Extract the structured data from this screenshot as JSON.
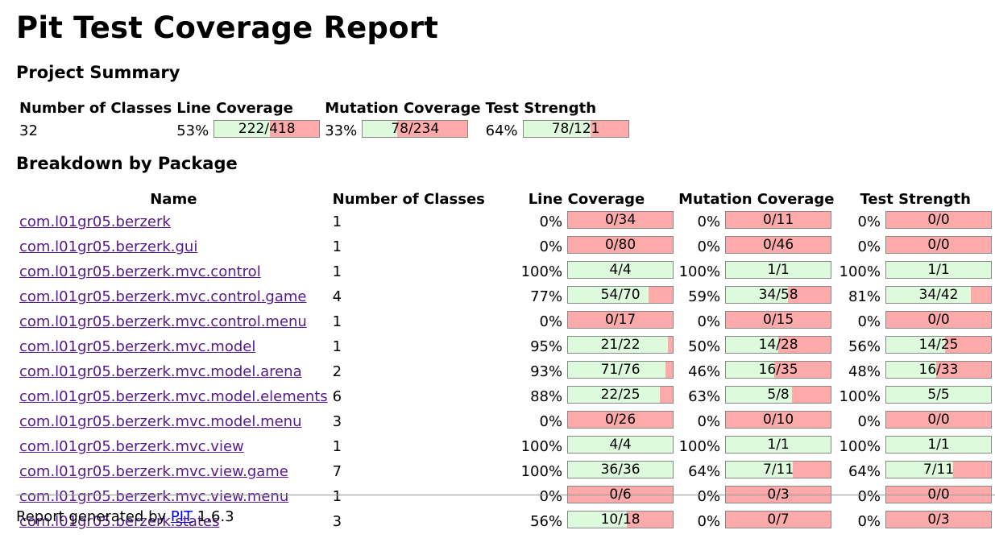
{
  "title": "Pit Test Coverage Report",
  "summary": {
    "heading": "Project Summary",
    "headers": [
      "Number of Classes",
      "Line Coverage",
      "Mutation Coverage",
      "Test Strength"
    ],
    "classes": "32",
    "line": {
      "pct": "53%",
      "text": "222/418",
      "ratio": 0.53
    },
    "mutation": {
      "pct": "33%",
      "text": "78/234",
      "ratio": 0.33
    },
    "strength": {
      "pct": "64%",
      "text": "78/121",
      "ratio": 0.64
    }
  },
  "breakdown": {
    "heading": "Breakdown by Package",
    "headers": [
      "Name",
      "Number of Classes",
      "Line Coverage",
      "Mutation Coverage",
      "Test Strength"
    ],
    "rows": [
      {
        "name": "com.l01gr05.berzerk",
        "classes": "1",
        "line": {
          "pct": "0%",
          "text": "0/34",
          "ratio": 0
        },
        "mutation": {
          "pct": "0%",
          "text": "0/11",
          "ratio": 0
        },
        "strength": {
          "pct": "0%",
          "text": "0/0",
          "ratio": 0
        }
      },
      {
        "name": "com.l01gr05.berzerk.gui",
        "classes": "1",
        "line": {
          "pct": "0%",
          "text": "0/80",
          "ratio": 0
        },
        "mutation": {
          "pct": "0%",
          "text": "0/46",
          "ratio": 0
        },
        "strength": {
          "pct": "0%",
          "text": "0/0",
          "ratio": 0
        }
      },
      {
        "name": "com.l01gr05.berzerk.mvc.control",
        "classes": "1",
        "line": {
          "pct": "100%",
          "text": "4/4",
          "ratio": 1
        },
        "mutation": {
          "pct": "100%",
          "text": "1/1",
          "ratio": 1
        },
        "strength": {
          "pct": "100%",
          "text": "1/1",
          "ratio": 1
        }
      },
      {
        "name": "com.l01gr05.berzerk.mvc.control.game",
        "classes": "4",
        "line": {
          "pct": "77%",
          "text": "54/70",
          "ratio": 0.77
        },
        "mutation": {
          "pct": "59%",
          "text": "34/58",
          "ratio": 0.59
        },
        "strength": {
          "pct": "81%",
          "text": "34/42",
          "ratio": 0.81
        }
      },
      {
        "name": "com.l01gr05.berzerk.mvc.control.menu",
        "classes": "1",
        "line": {
          "pct": "0%",
          "text": "0/17",
          "ratio": 0
        },
        "mutation": {
          "pct": "0%",
          "text": "0/15",
          "ratio": 0
        },
        "strength": {
          "pct": "0%",
          "text": "0/0",
          "ratio": 0
        }
      },
      {
        "name": "com.l01gr05.berzerk.mvc.model",
        "classes": "1",
        "line": {
          "pct": "95%",
          "text": "21/22",
          "ratio": 0.95
        },
        "mutation": {
          "pct": "50%",
          "text": "14/28",
          "ratio": 0.5
        },
        "strength": {
          "pct": "56%",
          "text": "14/25",
          "ratio": 0.56
        }
      },
      {
        "name": "com.l01gr05.berzerk.mvc.model.arena",
        "classes": "2",
        "line": {
          "pct": "93%",
          "text": "71/76",
          "ratio": 0.93
        },
        "mutation": {
          "pct": "46%",
          "text": "16/35",
          "ratio": 0.46
        },
        "strength": {
          "pct": "48%",
          "text": "16/33",
          "ratio": 0.48
        }
      },
      {
        "name": "com.l01gr05.berzerk.mvc.model.elements",
        "classes": "6",
        "line": {
          "pct": "88%",
          "text": "22/25",
          "ratio": 0.88
        },
        "mutation": {
          "pct": "63%",
          "text": "5/8",
          "ratio": 0.63
        },
        "strength": {
          "pct": "100%",
          "text": "5/5",
          "ratio": 1
        }
      },
      {
        "name": "com.l01gr05.berzerk.mvc.model.menu",
        "classes": "3",
        "line": {
          "pct": "0%",
          "text": "0/26",
          "ratio": 0
        },
        "mutation": {
          "pct": "0%",
          "text": "0/10",
          "ratio": 0
        },
        "strength": {
          "pct": "0%",
          "text": "0/0",
          "ratio": 0
        }
      },
      {
        "name": "com.l01gr05.berzerk.mvc.view",
        "classes": "1",
        "line": {
          "pct": "100%",
          "text": "4/4",
          "ratio": 1
        },
        "mutation": {
          "pct": "100%",
          "text": "1/1",
          "ratio": 1
        },
        "strength": {
          "pct": "100%",
          "text": "1/1",
          "ratio": 1
        }
      },
      {
        "name": "com.l01gr05.berzerk.mvc.view.game",
        "classes": "7",
        "line": {
          "pct": "100%",
          "text": "36/36",
          "ratio": 1
        },
        "mutation": {
          "pct": "64%",
          "text": "7/11",
          "ratio": 0.64
        },
        "strength": {
          "pct": "64%",
          "text": "7/11",
          "ratio": 0.64
        }
      },
      {
        "name": "com.l01gr05.berzerk.mvc.view.menu",
        "classes": "1",
        "line": {
          "pct": "0%",
          "text": "0/6",
          "ratio": 0
        },
        "mutation": {
          "pct": "0%",
          "text": "0/3",
          "ratio": 0
        },
        "strength": {
          "pct": "0%",
          "text": "0/0",
          "ratio": 0
        }
      },
      {
        "name": "com.l01gr05.berzerk.states",
        "classes": "3",
        "line": {
          "pct": "56%",
          "text": "10/18",
          "ratio": 0.56
        },
        "mutation": {
          "pct": "0%",
          "text": "0/7",
          "ratio": 0
        },
        "strength": {
          "pct": "0%",
          "text": "0/3",
          "ratio": 0
        }
      }
    ]
  },
  "footer": {
    "prefix": "Report generated by",
    "link": "PIT",
    "version": "1.6.3"
  },
  "colors": {
    "covered": "#ddfadd",
    "uncovered": "#ffaaaa",
    "link": "#551a8b",
    "footer_link": "#0000ee"
  }
}
